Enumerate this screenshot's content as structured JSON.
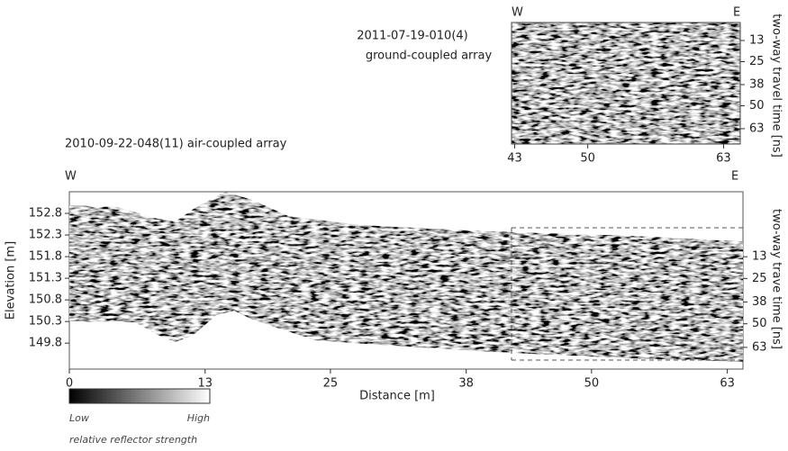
{
  "chart_data": [
    {
      "type": "radargram",
      "title": "2011-07-19-010(4)",
      "subtitle": "ground-coupled array",
      "left_label": "W",
      "right_label": "E",
      "y2_label": "two-way travel time [ns]",
      "xlim": [
        42.7,
        64.6
      ],
      "xticks": [
        43,
        50,
        63
      ],
      "y2lim": [
        2.8,
        71.7
      ],
      "y2ticks": [
        13,
        25,
        38,
        50,
        63
      ]
    },
    {
      "type": "radargram",
      "title": "2010-09-22-048(11) air-coupled array",
      "left_label": "W",
      "right_label": "E",
      "xlabel": "Distance [m]",
      "ylabel": "Elevation [m]",
      "y2_label": "two-way trave time [ns]",
      "xlim": [
        0,
        64.5
      ],
      "xticks": [
        0,
        13,
        25,
        38,
        50,
        63
      ],
      "ylim": [
        149.2,
        153.3
      ],
      "yticks": [
        152.8,
        152.3,
        151.8,
        151.3,
        150.8,
        150.3,
        149.8
      ],
      "y2lim": [
        0,
        72
      ],
      "y2ticks": [
        13,
        25,
        38,
        50,
        63
      ]
    }
  ],
  "colorbar": {
    "low_label": "Low",
    "high_label": "High",
    "caption": "relative reflector strength"
  }
}
